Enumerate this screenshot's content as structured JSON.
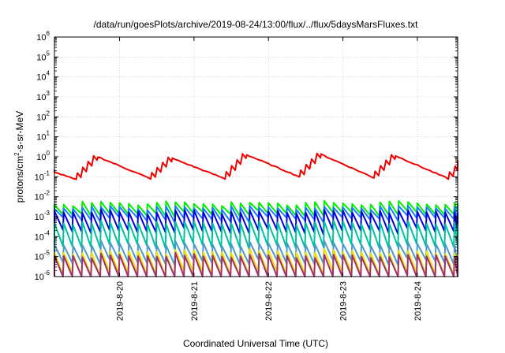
{
  "chart_data": {
    "type": "line",
    "title": "/data/run/goesPlots/archive/2019-08-24/13:00/flux/../flux/5daysMarsFluxes.txt",
    "xlabel": "Coordinated Universal Time (UTC)",
    "ylabel_prefix": "protons/cm",
    "ylabel_sup": "2",
    "ylabel_suffix": "-s-sr-MeV",
    "yscale": "log",
    "ylim": [
      1e-06,
      1000000.0
    ],
    "y_ticks": [
      {
        "base": "10",
        "exp": "-6"
      },
      {
        "base": "10",
        "exp": "-5"
      },
      {
        "base": "10",
        "exp": "-4"
      },
      {
        "base": "10",
        "exp": "-3"
      },
      {
        "base": "10",
        "exp": "-2"
      },
      {
        "base": "10",
        "exp": "-1"
      },
      {
        "base": "10",
        "exp": "0"
      },
      {
        "base": "10",
        "exp": "1"
      },
      {
        "base": "10",
        "exp": "2"
      },
      {
        "base": "10",
        "exp": "3"
      },
      {
        "base": "10",
        "exp": "4"
      },
      {
        "base": "10",
        "exp": "5"
      },
      {
        "base": "10",
        "exp": "6"
      }
    ],
    "x_range_days": [
      "2019-08-19 03:00",
      "2019-08-24 13:00"
    ],
    "x_ticks": [
      "2019-8-20",
      "2019-8-21",
      "2019-8-22",
      "2019-8-23",
      "2019-8-24"
    ],
    "grid": true,
    "series": [
      {
        "color": "#00ee00",
        "period_h": 3,
        "hi_log": -2.25,
        "lo_log": -2.75,
        "spike_log": -2.05
      },
      {
        "color": "#1a7cff",
        "period_h": 3,
        "hi_log": -2.45,
        "lo_log": -3.0,
        "spike_log": -2.3
      },
      {
        "color": "#0000dd",
        "period_h": 3,
        "hi_log": -2.65,
        "lo_log": -3.6,
        "spike_log": -2.55
      },
      {
        "color": "#00c0a0",
        "period_h": 3,
        "hi_log": -3.2,
        "lo_log": -4.35,
        "spike_log": -3.1
      },
      {
        "color": "#4a9ac8",
        "period_h": 3,
        "hi_log": -4.25,
        "lo_log": -5.15,
        "spike_log": -4.2
      },
      {
        "color": "#f0e000",
        "period_h": 3,
        "hi_log": -4.65,
        "lo_log": -5.75,
        "spike_log": -4.6
      },
      {
        "color": "#a03070",
        "period_h": 3,
        "hi_log": -4.85,
        "lo_log": -6.0,
        "spike_log": -4.8
      },
      {
        "color": "#ee0000",
        "type": "sawtooth_daily",
        "peaks_log": [
          -0.22,
          0.0,
          -0.08,
          0.1,
          0.12,
          0.05
        ],
        "troughs_log": [
          -1.15,
          -1.1,
          -1.1,
          -1.0,
          -1.05,
          -1.1
        ]
      }
    ]
  }
}
